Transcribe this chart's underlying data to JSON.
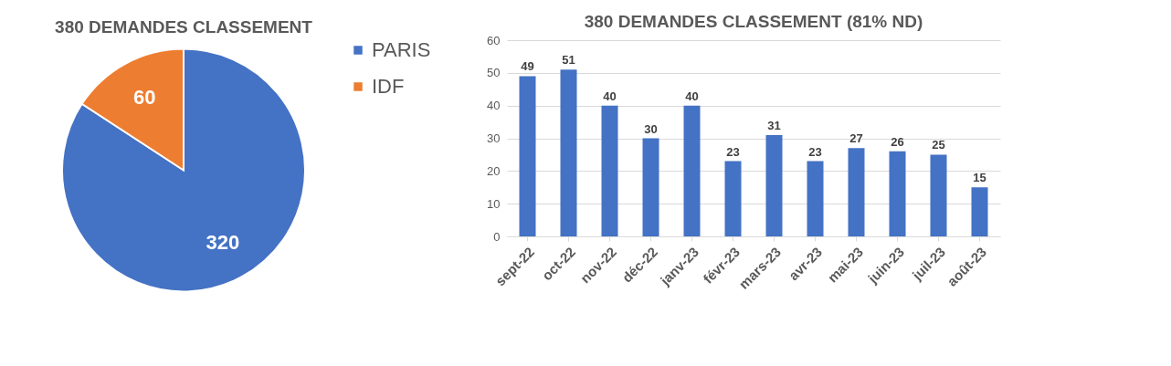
{
  "chart_data": [
    {
      "type": "pie",
      "title": "380 DEMANDES CLASSEMENT",
      "categories": [
        "PARIS",
        "IDF"
      ],
      "values": [
        320,
        60
      ],
      "colors": [
        "#4472c4",
        "#ed7d31"
      ],
      "data_labels": true,
      "legend": "right"
    },
    {
      "type": "bar",
      "title": "380 DEMANDES CLASSEMENT (81% ND)",
      "categories": [
        "sept-22",
        "oct-22",
        "nov-22",
        "déc-22",
        "janv-23",
        "févr-23",
        "mars-23",
        "avr-23",
        "mai-23",
        "juin-23",
        "juil-23",
        "août-23"
      ],
      "series": [
        {
          "color": "#4472c4",
          "values": [
            49,
            51,
            40,
            30,
            40,
            23,
            31,
            23,
            27,
            26,
            25,
            15
          ]
        }
      ],
      "ylim": [
        0,
        60
      ],
      "yticks": [
        0,
        10,
        20,
        30,
        40,
        50,
        60
      ],
      "grid": "y",
      "data_labels": true
    }
  ]
}
